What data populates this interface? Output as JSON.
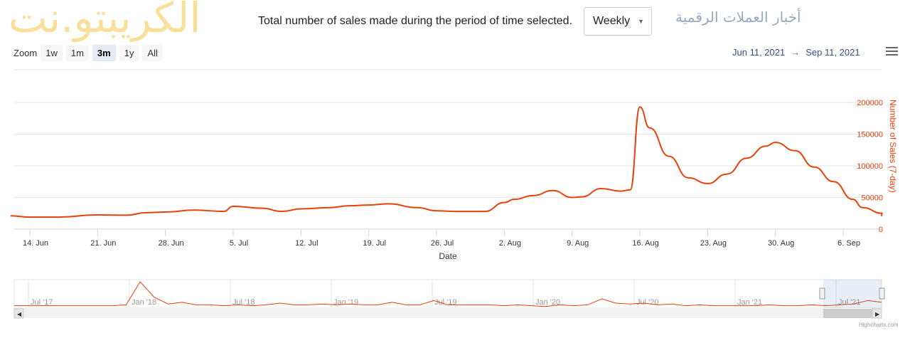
{
  "header": {
    "description": "Total number of sales made during the period of time selected.",
    "period_select": "Weekly"
  },
  "zoom": {
    "label": "Zoom",
    "buttons": [
      "1w",
      "1m",
      "3m",
      "1y",
      "All"
    ],
    "active": "3m"
  },
  "range": {
    "from": "Jun 11, 2021",
    "arrow": "→",
    "to": "Sep 11, 2021"
  },
  "colors": {
    "series": "#e8410b",
    "axis_title": "#e8410b",
    "range_text": "#334d8a"
  },
  "watermark": {
    "logo": "الكريبتو.نت",
    "tagline": "أخبار العملات الرقمية"
  },
  "credit": "Highcharts.com",
  "chart_data": {
    "type": "line",
    "xlabel": "Date",
    "ylabel": "Number of Sales (7-day)",
    "ylim": [
      0,
      200000
    ],
    "yticks": [
      "0",
      "50000",
      "100000",
      "150000",
      "200000"
    ],
    "xticks": [
      "14. Jun",
      "21. Jun",
      "28. Jun",
      "5. Jul",
      "12. Jul",
      "19. Jul",
      "26. Jul",
      "2. Aug",
      "9. Aug",
      "16. Aug",
      "23. Aug",
      "30. Aug",
      "6. Sep"
    ],
    "grid": true,
    "series": [
      {
        "x": [
          "2021-06-12",
          "2021-06-14",
          "2021-06-17",
          "2021-06-21",
          "2021-06-24",
          "2021-06-26",
          "2021-06-28",
          "2021-07-01",
          "2021-07-04",
          "2021-07-05",
          "2021-07-08",
          "2021-07-10",
          "2021-07-12",
          "2021-07-15",
          "2021-07-17",
          "2021-07-19",
          "2021-07-21",
          "2021-07-24",
          "2021-07-26",
          "2021-07-28",
          "2021-07-31",
          "2021-08-02",
          "2021-08-03",
          "2021-08-05",
          "2021-08-07",
          "2021-08-09",
          "2021-08-10",
          "2021-08-12",
          "2021-08-14",
          "2021-08-15",
          "2021-08-16",
          "2021-08-17",
          "2021-08-19",
          "2021-08-21",
          "2021-08-23",
          "2021-08-25",
          "2021-08-27",
          "2021-08-29",
          "2021-08-30",
          "2021-09-01",
          "2021-09-03",
          "2021-09-05",
          "2021-09-07",
          "2021-09-08",
          "2021-09-10"
        ],
        "values": [
          21000,
          19000,
          19000,
          22500,
          22000,
          26000,
          27000,
          30000,
          28000,
          36000,
          33000,
          28000,
          32000,
          34000,
          37000,
          38000,
          40000,
          34000,
          29000,
          28000,
          28000,
          42000,
          47000,
          53000,
          61000,
          50000,
          51000,
          64000,
          60000,
          62000,
          193000,
          160000,
          115000,
          81000,
          72000,
          87000,
          112000,
          131000,
          137000,
          124000,
          98000,
          75000,
          47000,
          34000,
          25000
        ]
      }
    ],
    "navigator": {
      "xticks": [
        "Jul '17",
        "Jan '18",
        "Jul '18",
        "Jan '19",
        "Jul '19",
        "Jan '20",
        "Jul '20",
        "Jan '21",
        "Jul '21"
      ],
      "values": [
        2,
        2,
        2,
        2,
        2,
        2,
        2,
        2,
        3,
        30,
        12,
        4,
        6,
        3,
        3,
        2,
        3,
        2,
        3,
        5,
        3,
        3,
        4,
        3,
        4,
        3,
        3,
        6,
        3,
        3,
        8,
        3,
        3,
        3,
        3,
        2,
        3,
        2,
        1,
        3,
        2,
        3,
        10,
        5,
        4,
        5,
        3,
        4,
        2,
        3,
        2,
        2,
        2,
        2,
        3,
        2,
        2,
        3,
        2,
        3,
        4,
        8,
        6
      ]
    }
  }
}
